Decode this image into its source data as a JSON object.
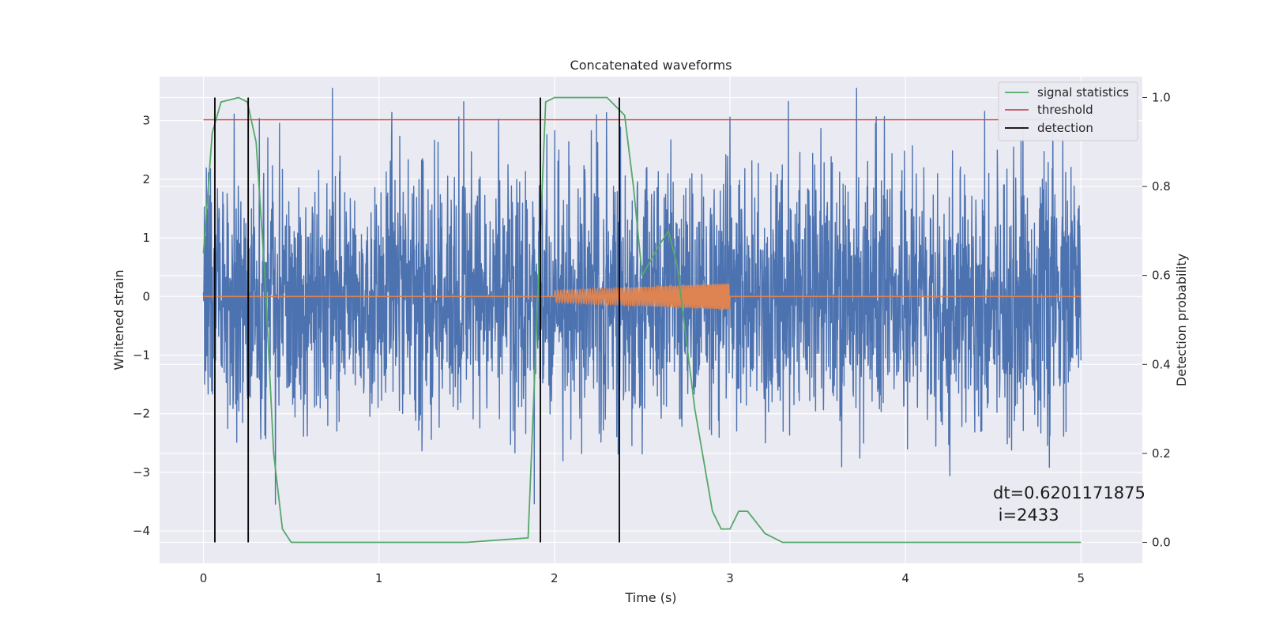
{
  "chart_data": {
    "type": "line",
    "title": "Concatenated waveforms",
    "xlabel": "Time (s)",
    "ylabel": "Whitened strain",
    "ylabel_right": "Detection probability",
    "xlim": [
      -0.25,
      5.35
    ],
    "ylim": [
      -4.55,
      3.75
    ],
    "ylim_right": [
      -0.047,
      1.047
    ],
    "xticks": [
      0,
      1,
      2,
      3,
      4,
      5
    ],
    "yticks": [
      -4,
      -3,
      -2,
      -1,
      0,
      1,
      2,
      3
    ],
    "yticks_right": [
      0.0,
      0.2,
      0.4,
      0.6,
      0.8,
      1.0
    ],
    "grid": true,
    "legend_placement": "top-right",
    "annotation": [
      "dt=0.6201171875",
      " i=2433"
    ],
    "colors": {
      "strain": "#4c72b0",
      "template": "#dd8452",
      "signal_statistics": "#55a868",
      "threshold": "#c44e52",
      "detection": "#000000",
      "background": "#eaeaf2"
    },
    "series": [
      {
        "axis": "left",
        "color": "#4c72b0",
        "description_visible": false,
        "x_range": [
          0,
          5
        ],
        "noise_spread": 2.0,
        "extremes": {
          "max": 3.55,
          "min": -4.15
        }
      },
      {
        "axis": "left",
        "color": "#dd8452",
        "x": [
          0,
          2.0,
          2.0,
          3.0,
          3.0,
          5.0
        ],
        "y": [
          0,
          0,
          0.05,
          0.15,
          0,
          0
        ],
        "chirp": {
          "start": 2.0,
          "end": 3.0,
          "amp_start": 0.1,
          "amp_end": 0.22
        }
      },
      {
        "name": "signal statistics",
        "axis": "right",
        "color": "#55a868",
        "x": [
          0,
          0.05,
          0.1,
          0.2,
          0.25,
          0.3,
          0.35,
          0.4,
          0.45,
          0.5,
          1.0,
          1.5,
          1.85,
          1.9,
          1.95,
          2.0,
          2.3,
          2.4,
          2.45,
          2.5,
          2.6,
          2.65,
          2.7,
          2.8,
          2.9,
          2.95,
          3.0,
          3.05,
          3.1,
          3.2,
          3.3,
          4.0,
          5.0
        ],
        "y": [
          0.65,
          0.92,
          0.99,
          1.0,
          0.99,
          0.9,
          0.6,
          0.2,
          0.03,
          0.0,
          0.0,
          0.0,
          0.01,
          0.5,
          0.99,
          1.0,
          1.0,
          0.96,
          0.8,
          0.6,
          0.67,
          0.7,
          0.62,
          0.3,
          0.07,
          0.03,
          0.03,
          0.07,
          0.07,
          0.02,
          0.0,
          0.0,
          0.0
        ]
      },
      {
        "name": "threshold",
        "axis": "right",
        "color": "#c44e52",
        "x": [
          0,
          5
        ],
        "y": [
          0.95,
          0.95
        ]
      },
      {
        "name": "detection",
        "axis": "right",
        "color": "#000000",
        "vlines": [
          0.065,
          0.255,
          1.92,
          2.37
        ],
        "yrange": [
          0.0,
          1.0
        ]
      }
    ]
  }
}
